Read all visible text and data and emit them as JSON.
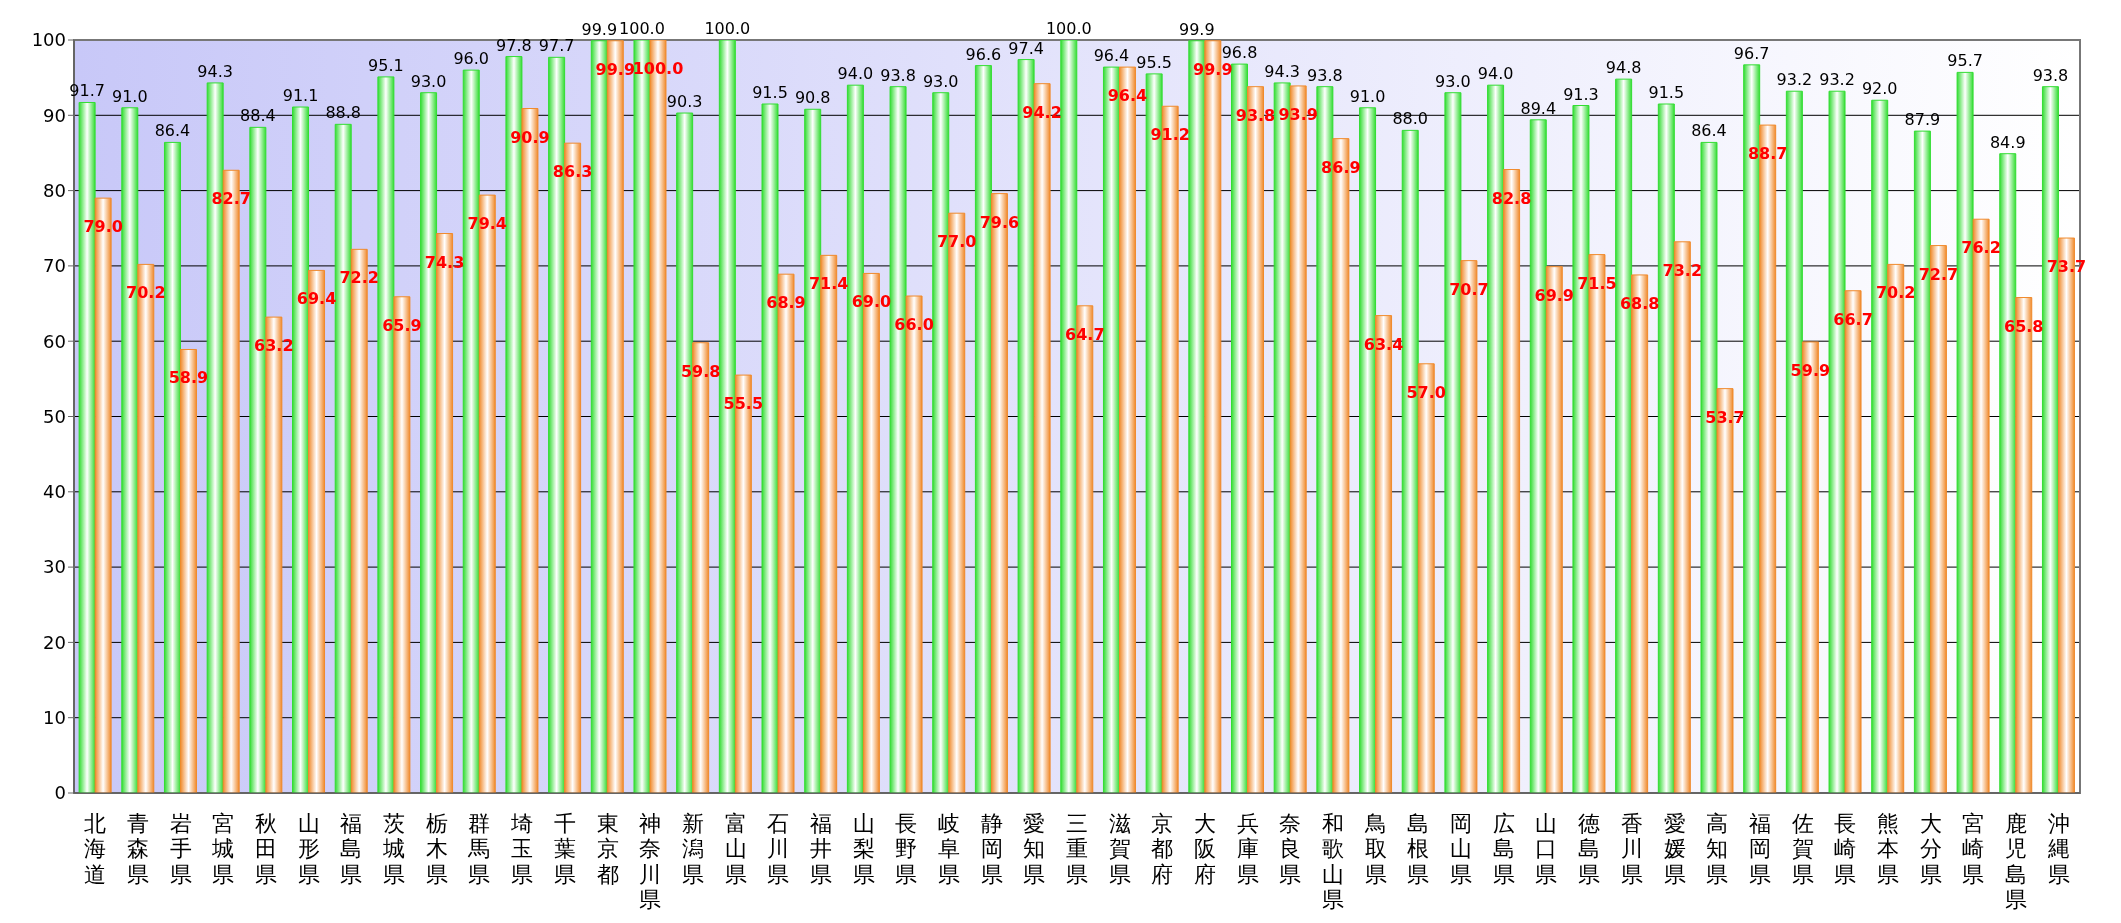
{
  "chart_data": {
    "type": "bar",
    "categories": [
      "北海道",
      "青森県",
      "岩手県",
      "宮城県",
      "秋田県",
      "山形県",
      "福島県",
      "茨城県",
      "栃木県",
      "群馬県",
      "埼玉県",
      "千葉県",
      "東京都",
      "神奈川県",
      "新潟県",
      "富山県",
      "石川県",
      "福井県",
      "山梨県",
      "長野県",
      "岐阜県",
      "静岡県",
      "愛知県",
      "三重県",
      "滋賀県",
      "京都府",
      "大阪府",
      "兵庫県",
      "奈良県",
      "和歌山県",
      "鳥取県",
      "島根県",
      "岡山県",
      "広島県",
      "山口県",
      "徳島県",
      "香川県",
      "愛媛県",
      "高知県",
      "福岡県",
      "佐賀県",
      "長崎県",
      "熊本県",
      "大分県",
      "宮崎県",
      "鹿児島県",
      "沖縄県"
    ],
    "series": [
      {
        "color": "#33dd33",
        "values": [
          91.7,
          91.0,
          86.4,
          94.3,
          88.4,
          91.1,
          88.8,
          95.1,
          93.0,
          96.0,
          97.8,
          97.7,
          99.9,
          100.0,
          90.3,
          100.0,
          91.5,
          90.8,
          94.0,
          93.8,
          93.0,
          96.6,
          97.4,
          100.0,
          96.4,
          95.5,
          99.9,
          96.8,
          94.3,
          93.8,
          91.0,
          88.0,
          93.0,
          94.0,
          89.4,
          91.3,
          94.8,
          91.5,
          86.4,
          96.7,
          93.2,
          93.2,
          92.0,
          87.9,
          95.7,
          84.9,
          93.8
        ],
        "value_labels": [
          "91.7",
          "91.0",
          "86.4",
          "94.3",
          "88.4",
          "91.1",
          "88.8",
          "95.1",
          "93.0",
          "96.0",
          "97.8",
          "97.7",
          "99.9",
          "100.0",
          "90.3",
          "100.0",
          "91.5",
          "90.8",
          "94.0",
          "93.8",
          "93.0",
          "96.6",
          "97.4",
          "100.0",
          "96.4",
          "95.5",
          "99.9",
          "96.8",
          "94.3",
          "93.8",
          "91.0",
          "88.0",
          "93.0",
          "94.0",
          "89.4",
          "91.3",
          "94.8",
          "91.5",
          "86.4",
          "96.7",
          "93.2",
          "93.2",
          "92.0",
          "87.9",
          "95.7",
          "84.9",
          "93.8"
        ]
      },
      {
        "color": "#f08a2c",
        "values": [
          79.0,
          70.2,
          58.9,
          82.7,
          63.2,
          69.4,
          72.2,
          65.9,
          74.3,
          79.4,
          90.9,
          86.3,
          99.9,
          100.0,
          59.8,
          55.5,
          68.9,
          71.4,
          69.0,
          66.0,
          77.0,
          79.6,
          94.2,
          64.7,
          96.4,
          91.2,
          99.9,
          93.8,
          93.9,
          86.9,
          63.4,
          57.0,
          70.7,
          82.8,
          69.9,
          71.5,
          68.8,
          73.2,
          53.7,
          88.7,
          59.9,
          66.7,
          70.2,
          72.7,
          76.2,
          65.8,
          73.7
        ],
        "value_labels": [
          "79.0",
          "70.2",
          "58.9",
          "82.7",
          "63.2",
          "69.4",
          "72.2",
          "65.9",
          "74.3",
          "79.4",
          "90.9",
          "86.3",
          "99.9",
          "100.0",
          "59.8",
          "55.5",
          "68.9",
          "71.4",
          "69.0",
          "66.0",
          "77.0",
          "79.6",
          "94.2",
          "64.7",
          "96.4",
          "91.2",
          "99.9",
          "93.8",
          "93.9",
          "86.9",
          "63.4",
          "57.0",
          "70.7",
          "82.8",
          "69.9",
          "71.5",
          "68.8",
          "73.2",
          "53.7",
          "88.7",
          "59.9",
          "66.7",
          "70.2",
          "72.7",
          "76.2",
          "65.8",
          "73.7"
        ]
      }
    ],
    "ylim": [
      0,
      100
    ],
    "yticks": [
      0,
      10,
      20,
      30,
      40,
      50,
      60,
      70,
      80,
      90,
      100
    ],
    "grid": "y"
  }
}
